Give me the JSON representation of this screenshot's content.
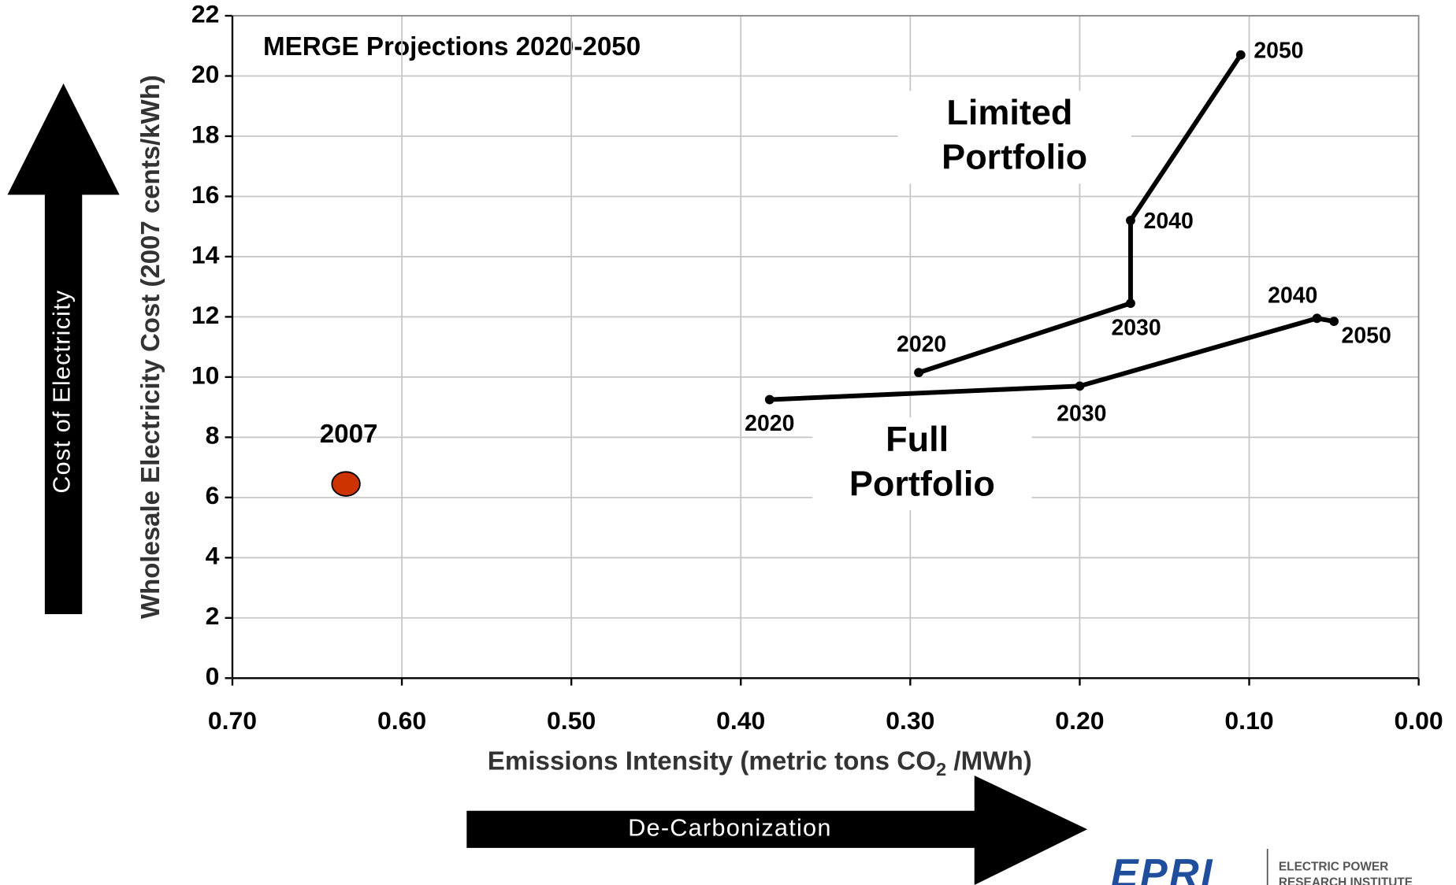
{
  "chart_data": {
    "type": "line",
    "title": "MERGE Projections 2020-2050",
    "xlabel": [
      "Emissions Intensity (metric tons CO",
      "2",
      " /MWh)"
    ],
    "ylabel": "Wholesale Electricity Cost (2007 cents/kWh)",
    "xlim": [
      0.7,
      0
    ],
    "ylim": [
      0,
      22
    ],
    "xticks": [
      {
        "value": 0.7,
        "label": "0.70"
      },
      {
        "value": 0.6,
        "label": "0.60"
      },
      {
        "value": 0.5,
        "label": "0.50"
      },
      {
        "value": 0.4,
        "label": "0.40"
      },
      {
        "value": 0.3,
        "label": "0.30"
      },
      {
        "value": 0.2,
        "label": "0.20"
      },
      {
        "value": 0.1,
        "label": "0.10"
      },
      {
        "value": 0,
        "label": "0.00"
      }
    ],
    "yticks": [
      0,
      2,
      4,
      6,
      8,
      10,
      12,
      14,
      16,
      18,
      20,
      22
    ],
    "grid": true,
    "series": [
      {
        "name": "Limited Portfolio",
        "color": "#000000",
        "x": [
          0.295,
          0.17,
          0.17,
          0.105
        ],
        "values": [
          10.15,
          12.45,
          15.2,
          20.7
        ],
        "point_labels": [
          "2020",
          "2030",
          "2040",
          "2050"
        ]
      },
      {
        "name": "Full Portfolio",
        "color": "#000000",
        "x": [
          0.383,
          0.2,
          0.06,
          0.05
        ],
        "values": [
          9.25,
          9.7,
          11.95,
          11.85
        ],
        "point_labels": [
          "2020",
          "2030",
          "2040",
          "2050"
        ]
      },
      {
        "name": "2007",
        "color": "#cc3300",
        "x": [
          0.633
        ],
        "values": [
          6.45
        ],
        "markers_only": true
      }
    ],
    "annotations": {
      "y_arrow": "Cost of Electricity",
      "x_arrow": "De-Carbonization"
    },
    "logo": {
      "mark": "EPRI",
      "tagline": [
        "ELECTRIC POWER",
        "RESEARCH INSTITUTE"
      ]
    }
  }
}
